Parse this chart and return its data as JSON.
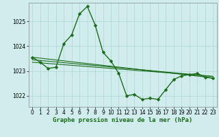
{
  "title": "Graphe pression niveau de la mer (hPa)",
  "background_color": "#d0ecec",
  "grid_color": "#aed4d4",
  "line_color": "#1a6b1a",
  "xlim": [
    -0.5,
    23.5
  ],
  "ylim": [
    1021.55,
    1025.75
  ],
  "yticks": [
    1022,
    1023,
    1024,
    1025
  ],
  "xticks": [
    0,
    1,
    2,
    3,
    4,
    5,
    6,
    7,
    8,
    9,
    10,
    11,
    12,
    13,
    14,
    15,
    16,
    17,
    18,
    19,
    20,
    21,
    22,
    23
  ],
  "main_y": [
    1023.55,
    1023.35,
    1023.1,
    1023.15,
    1024.1,
    1024.45,
    1025.3,
    1025.6,
    1024.85,
    1023.75,
    1023.4,
    1022.9,
    1022.0,
    1022.05,
    1021.85,
    1021.9,
    1021.85,
    1022.25,
    1022.65,
    1022.8,
    1022.85,
    1022.9,
    1022.75,
    1022.7
  ],
  "trend_lines": [
    {
      "x0": 0,
      "y0": 1023.55,
      "x1": 23,
      "y1": 1022.72
    },
    {
      "x0": 0,
      "y0": 1023.45,
      "x1": 23,
      "y1": 1022.78
    },
    {
      "x0": 0,
      "y0": 1023.35,
      "x1": 23,
      "y1": 1022.78
    }
  ],
  "tick_fontsize": 5.5,
  "label_fontsize": 6.5,
  "markersize": 2.5,
  "linewidth": 1.0
}
